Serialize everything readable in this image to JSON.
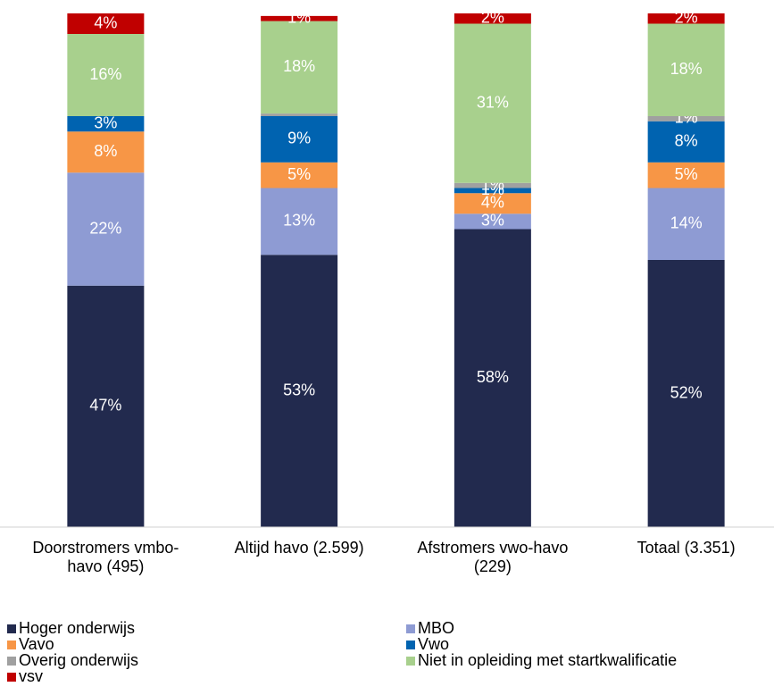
{
  "chart_data": {
    "type": "stacked_bar",
    "categories": [
      "Doorstromers vmbo-havo (495)",
      "Altijd havo (2.599)",
      "Afstromers vwo-havo (229)",
      "Totaal (3.351)"
    ],
    "ylim": [
      0,
      100
    ],
    "series": [
      {
        "name": "Hoger onderwijs",
        "color": "#222a4e",
        "values": [
          47,
          53,
          58,
          52
        ],
        "value_labels": [
          "47%",
          "53%",
          "58%",
          "52%"
        ]
      },
      {
        "name": "MBO",
        "color": "#8e9bd3",
        "values": [
          22,
          13,
          3,
          14
        ],
        "value_labels": [
          "22%",
          "13%",
          "3%",
          "14%"
        ]
      },
      {
        "name": "Vavo",
        "color": "#f79646",
        "values": [
          8,
          5,
          4,
          5
        ],
        "value_labels": [
          "8%",
          "5%",
          "4%",
          "5%"
        ]
      },
      {
        "name": "Vwo",
        "color": "#0063b0",
        "values": [
          3,
          9,
          1,
          8
        ],
        "value_labels": [
          "3%",
          "9%",
          "1%",
          "8%"
        ]
      },
      {
        "name": "Overig onderwijs",
        "color": "#a0a0a0",
        "values": [
          0,
          0.5,
          1,
          1
        ],
        "value_labels": [
          null,
          null,
          "1%",
          "1%"
        ]
      },
      {
        "name": "Niet in opleiding met startkwalificatie",
        "color": "#a8d08d",
        "values": [
          16,
          18,
          31,
          18
        ],
        "value_labels": [
          "16%",
          "18%",
          "31%",
          "18%"
        ]
      },
      {
        "name": "vsv",
        "color": "#c00000",
        "values": [
          4,
          1,
          2,
          2
        ],
        "value_labels": [
          "4%",
          "1%",
          "2%",
          "2%"
        ]
      }
    ]
  }
}
